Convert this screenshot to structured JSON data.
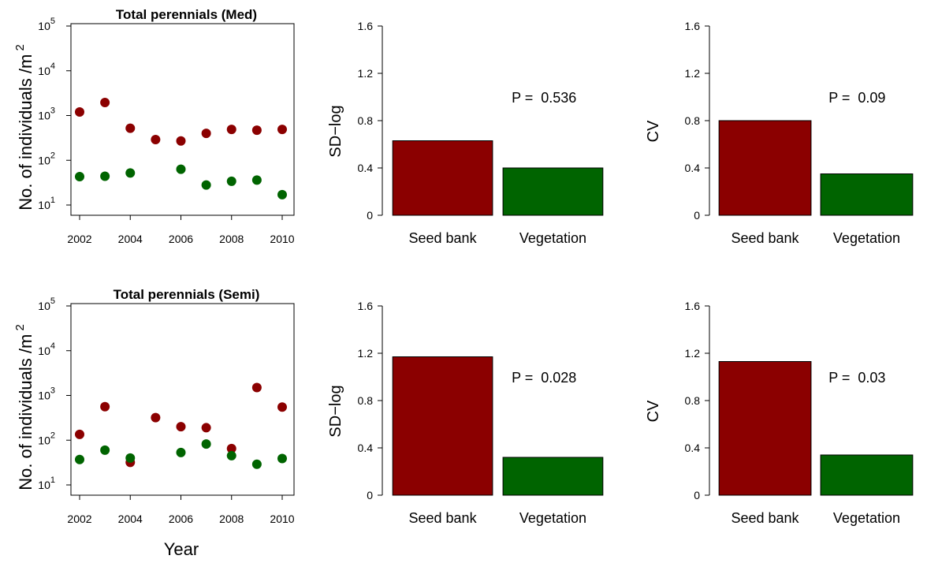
{
  "figure": {
    "shared_xlabel": "Year"
  },
  "colors": {
    "seed_bank": "#8b0000",
    "vegetation": "#006400"
  },
  "chart_data": [
    {
      "type": "scatter",
      "title": "Total perennials (Med)",
      "ylabel": "No. of individuals /m",
      "ylabel_superscript": "2",
      "yscale": "log",
      "ylim": [
        10,
        100000
      ],
      "yticks": [
        "10",
        "10",
        "10",
        "10",
        "10"
      ],
      "ytick_exponents": [
        "1",
        "2",
        "3",
        "4",
        "5"
      ],
      "xlim": [
        2002,
        2010
      ],
      "xticks": [
        "2002",
        "2004",
        "2006",
        "2008",
        "2010"
      ],
      "series": [
        {
          "color": "#8b0000",
          "x": [
            2002,
            2003,
            2004,
            2005,
            2006,
            2007,
            2008,
            2009,
            2010
          ],
          "y": [
            1200,
            1950,
            520,
            290,
            270,
            400,
            490,
            470,
            490
          ]
        },
        {
          "color": "#006400",
          "x": [
            2002,
            2003,
            2004,
            2005,
            2006,
            2007,
            2008,
            2009,
            2010
          ],
          "y": [
            43,
            44,
            52,
            null,
            63,
            28,
            34,
            36,
            17
          ]
        }
      ]
    },
    {
      "type": "bar",
      "ylabel": "SD−log",
      "ylim": [
        0,
        1.6
      ],
      "yticks": [
        "0",
        "0.4",
        "0.8",
        "1.2",
        "1.6"
      ],
      "categories": [
        "Seed bank",
        "Vegetation"
      ],
      "values": [
        0.63,
        0.4
      ],
      "annotation": "P =  0.536"
    },
    {
      "type": "bar",
      "ylabel": "CV",
      "ylim": [
        0,
        1.6
      ],
      "yticks": [
        "0",
        "0.4",
        "0.8",
        "1.2",
        "1.6"
      ],
      "categories": [
        "Seed bank",
        "Vegetation"
      ],
      "values": [
        0.8,
        0.35
      ],
      "annotation": "P =  0.09"
    },
    {
      "type": "scatter",
      "title": "Total perennials (Semi)",
      "ylabel": "No. of individuals /m",
      "ylabel_superscript": "2",
      "yscale": "log",
      "ylim": [
        10,
        100000
      ],
      "yticks": [
        "10",
        "10",
        "10",
        "10",
        "10"
      ],
      "ytick_exponents": [
        "1",
        "2",
        "3",
        "4",
        "5"
      ],
      "xlim": [
        2002,
        2010
      ],
      "xticks": [
        "2002",
        "2004",
        "2006",
        "2008",
        "2010"
      ],
      "series": [
        {
          "color": "#8b0000",
          "x": [
            2002,
            2003,
            2004,
            2005,
            2006,
            2007,
            2008,
            2009,
            2010
          ],
          "y": [
            135,
            560,
            32,
            320,
            200,
            190,
            65,
            1500,
            550
          ]
        },
        {
          "color": "#006400",
          "x": [
            2002,
            2003,
            2004,
            2005,
            2006,
            2007,
            2008,
            2009,
            2010
          ],
          "y": [
            37,
            60,
            40,
            null,
            53,
            82,
            45,
            29,
            39
          ]
        }
      ]
    },
    {
      "type": "bar",
      "ylabel": "SD−log",
      "ylim": [
        0,
        1.6
      ],
      "yticks": [
        "0",
        "0.4",
        "0.8",
        "1.2",
        "1.6"
      ],
      "categories": [
        "Seed bank",
        "Vegetation"
      ],
      "values": [
        1.17,
        0.32
      ],
      "annotation": "P =  0.028"
    },
    {
      "type": "bar",
      "ylabel": "CV",
      "ylim": [
        0,
        1.6
      ],
      "yticks": [
        "0",
        "0.4",
        "0.8",
        "1.2",
        "1.6"
      ],
      "categories": [
        "Seed bank",
        "Vegetation"
      ],
      "values": [
        1.13,
        0.34
      ],
      "annotation": "P =  0.03"
    }
  ]
}
